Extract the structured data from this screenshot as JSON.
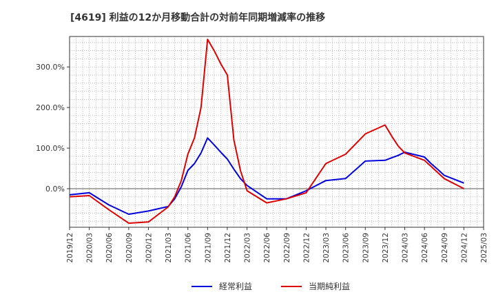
{
  "chart_data": {
    "type": "line",
    "title": "[4619]  利益の12か月移動合計の対前年同期増減率の推移",
    "xlabel": "",
    "ylabel": "",
    "ylim": [
      -95,
      375
    ],
    "y_ticks": [
      {
        "value": 0,
        "label": "0.0%"
      },
      {
        "value": 100,
        "label": "100.0%"
      },
      {
        "value": 200,
        "label": "200.0%"
      },
      {
        "value": 300,
        "label": "300.0%"
      }
    ],
    "x_ticks": [
      "2019/12",
      "2020/03",
      "2020/06",
      "2020/09",
      "2020/12",
      "2021/03",
      "2021/06",
      "2021/09",
      "2021/12",
      "2022/03",
      "2022/06",
      "2022/09",
      "2022/12",
      "2023/03",
      "2023/06",
      "2023/09",
      "2023/12",
      "2024/03",
      "2024/06",
      "2024/09",
      "2024/12",
      "2025/03"
    ],
    "x": [
      "2019/12",
      "2020/03",
      "2020/06",
      "2020/09",
      "2020/12",
      "2021/03",
      "2021/04",
      "2021/05",
      "2021/06",
      "2021/07",
      "2021/08",
      "2021/09",
      "2021/10",
      "2021/11",
      "2021/12",
      "2022/01",
      "2022/02",
      "2022/03",
      "2022/06",
      "2022/09",
      "2022/12",
      "2023/03",
      "2023/06",
      "2023/09",
      "2023/12",
      "2024/01",
      "2024/02",
      "2024/03",
      "2024/06",
      "2024/07",
      "2024/08",
      "2024/09",
      "2024/12"
    ],
    "grid": true,
    "legend_position": "bottom",
    "series": [
      {
        "name": "経常利益",
        "color": "#0000dd",
        "values": [
          -15,
          -10,
          -40,
          -63,
          -55,
          -44,
          -25,
          5,
          45,
          62,
          88,
          125,
          108,
          90,
          73,
          48,
          25,
          8,
          -25,
          -25,
          -5,
          20,
          25,
          68,
          70,
          76,
          82,
          90,
          78,
          62,
          48,
          33,
          14
        ]
      },
      {
        "name": "当期純利益",
        "color": "#dd0000",
        "values": [
          -20,
          -17,
          -52,
          -85,
          -82,
          -45,
          -20,
          20,
          85,
          125,
          200,
          368,
          340,
          308,
          280,
          120,
          45,
          -5,
          -35,
          -25,
          -10,
          62,
          85,
          135,
          157,
          130,
          105,
          88,
          70,
          55,
          40,
          25,
          0
        ]
      }
    ]
  }
}
